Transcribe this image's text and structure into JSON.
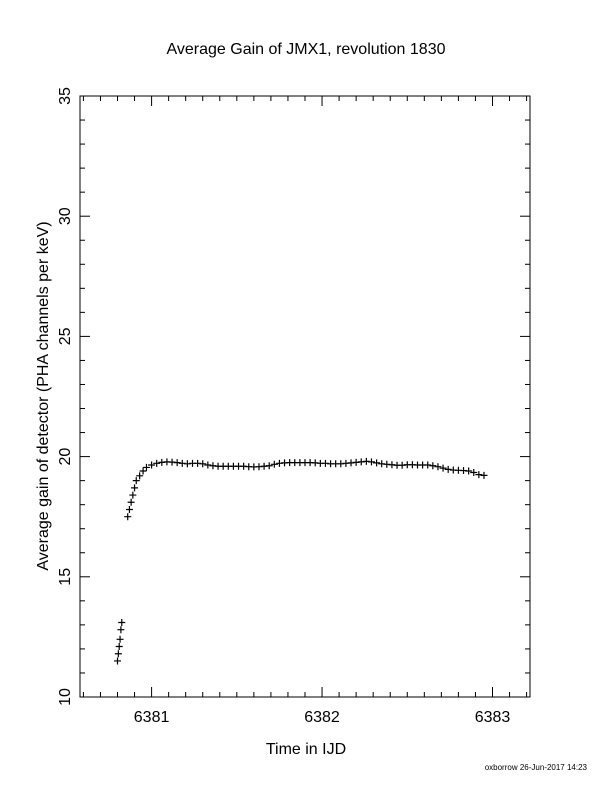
{
  "chart_data": {
    "type": "scatter",
    "title": "Average Gain of JMX1, revolution 1830",
    "xlabel": "Time in IJD",
    "ylabel": "Average gain of detector (PHA channels per keV)",
    "xlim": [
      6380.58,
      6383.22
    ],
    "ylim": [
      10,
      35
    ],
    "x_major_ticks": [
      6381,
      6382,
      6383
    ],
    "x_tick_labels": [
      "6381",
      "6382",
      "6383"
    ],
    "x_minor_step": 0.1,
    "y_major_ticks": [
      10,
      15,
      20,
      25,
      30,
      35
    ],
    "y_tick_labels": [
      "10",
      "15",
      "20",
      "25",
      "30",
      "35"
    ],
    "y_minor_step": 1,
    "grid": false,
    "legend": "none",
    "marker": "plus",
    "series_color": "#000000",
    "series": [
      {
        "points": [
          [
            6380.8,
            11.5
          ],
          [
            6380.805,
            11.8
          ],
          [
            6380.81,
            12.1
          ],
          [
            6380.815,
            12.4
          ],
          [
            6380.82,
            12.8
          ],
          [
            6380.825,
            13.1
          ],
          [
            6380.86,
            17.5
          ],
          [
            6380.87,
            17.8
          ],
          [
            6380.88,
            18.1
          ],
          [
            6380.89,
            18.4
          ],
          [
            6380.9,
            18.7
          ],
          [
            6380.91,
            19.0
          ],
          [
            6380.93,
            19.2
          ],
          [
            6380.95,
            19.4
          ],
          [
            6380.97,
            19.55
          ],
          [
            6381.0,
            19.65
          ],
          [
            6381.03,
            19.72
          ],
          [
            6381.06,
            19.76
          ],
          [
            6381.09,
            19.78
          ],
          [
            6381.12,
            19.77
          ],
          [
            6381.15,
            19.75
          ],
          [
            6381.18,
            19.72
          ],
          [
            6381.21,
            19.7
          ],
          [
            6381.24,
            19.72
          ],
          [
            6381.27,
            19.72
          ],
          [
            6381.3,
            19.7
          ],
          [
            6381.33,
            19.65
          ],
          [
            6381.36,
            19.62
          ],
          [
            6381.39,
            19.6
          ],
          [
            6381.42,
            19.6
          ],
          [
            6381.45,
            19.6
          ],
          [
            6381.48,
            19.6
          ],
          [
            6381.51,
            19.6
          ],
          [
            6381.54,
            19.6
          ],
          [
            6381.57,
            19.58
          ],
          [
            6381.6,
            19.57
          ],
          [
            6381.63,
            19.58
          ],
          [
            6381.66,
            19.6
          ],
          [
            6381.69,
            19.62
          ],
          [
            6381.72,
            19.68
          ],
          [
            6381.75,
            19.72
          ],
          [
            6381.78,
            19.74
          ],
          [
            6381.81,
            19.75
          ],
          [
            6381.84,
            19.75
          ],
          [
            6381.87,
            19.75
          ],
          [
            6381.9,
            19.75
          ],
          [
            6381.93,
            19.75
          ],
          [
            6381.96,
            19.74
          ],
          [
            6381.99,
            19.72
          ],
          [
            6382.02,
            19.72
          ],
          [
            6382.05,
            19.7
          ],
          [
            6382.08,
            19.7
          ],
          [
            6382.11,
            19.7
          ],
          [
            6382.14,
            19.72
          ],
          [
            6382.17,
            19.74
          ],
          [
            6382.2,
            19.76
          ],
          [
            6382.23,
            19.78
          ],
          [
            6382.26,
            19.8
          ],
          [
            6382.29,
            19.78
          ],
          [
            6382.32,
            19.74
          ],
          [
            6382.35,
            19.7
          ],
          [
            6382.38,
            19.68
          ],
          [
            6382.41,
            19.66
          ],
          [
            6382.44,
            19.64
          ],
          [
            6382.47,
            19.64
          ],
          [
            6382.5,
            19.66
          ],
          [
            6382.53,
            19.66
          ],
          [
            6382.56,
            19.65
          ],
          [
            6382.59,
            19.65
          ],
          [
            6382.62,
            19.65
          ],
          [
            6382.65,
            19.62
          ],
          [
            6382.68,
            19.58
          ],
          [
            6382.71,
            19.52
          ],
          [
            6382.74,
            19.47
          ],
          [
            6382.77,
            19.44
          ],
          [
            6382.8,
            19.43
          ],
          [
            6382.83,
            19.42
          ],
          [
            6382.86,
            19.4
          ],
          [
            6382.89,
            19.34
          ],
          [
            6382.92,
            19.25
          ],
          [
            6382.95,
            19.22
          ]
        ]
      }
    ]
  },
  "footer": {
    "credit": "oxborrow 26-Jun-2017 14:23"
  }
}
